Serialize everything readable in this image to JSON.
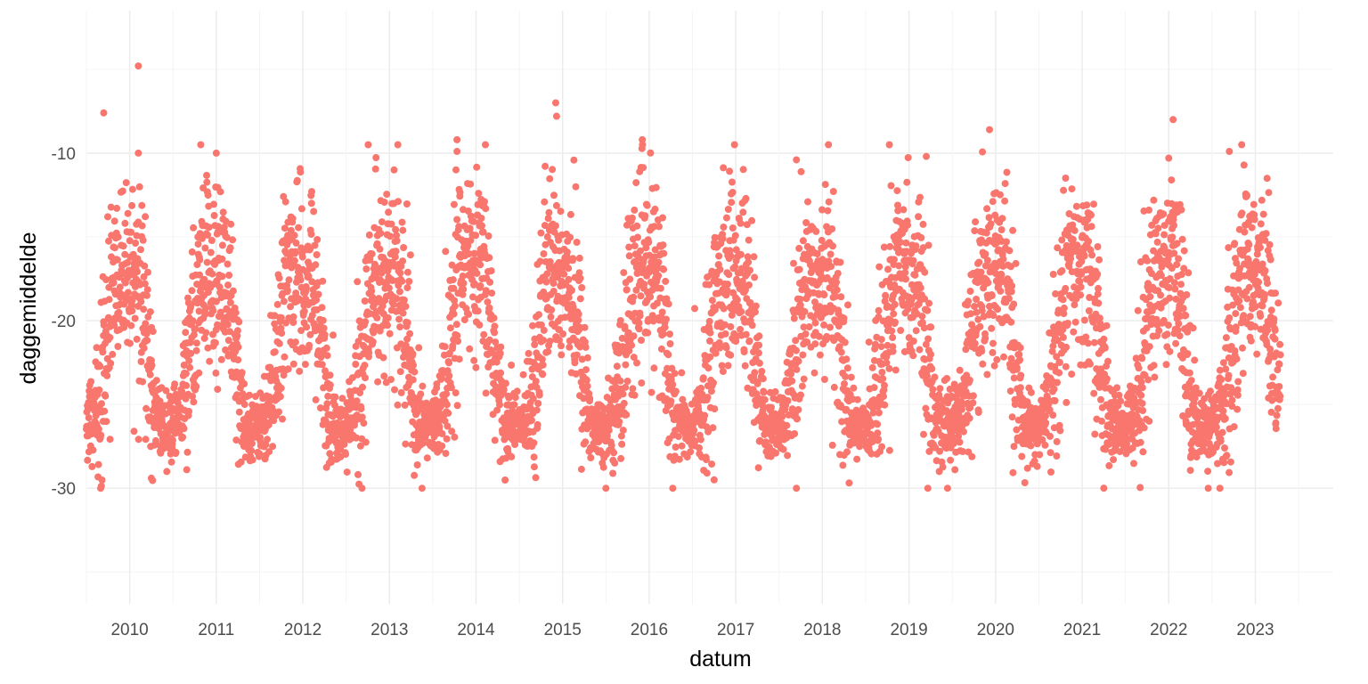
{
  "chart_data": {
    "type": "scatter",
    "title": "",
    "xlabel": "datum",
    "ylabel": "daggemiddelde",
    "x_ticks": [
      "2010",
      "2011",
      "2012",
      "2013",
      "2014",
      "2015",
      "2016",
      "2017",
      "2018",
      "2019",
      "2020",
      "2021",
      "2022",
      "2023"
    ],
    "y_ticks": [
      -10,
      -20,
      -30
    ],
    "y_tick_labels": [
      "-10",
      "-20",
      "-30"
    ],
    "xlim": [
      2009.5,
      2023.9
    ],
    "ylim": [
      -36.9,
      -1.5
    ],
    "grid": true,
    "legend": "none",
    "point_color": "#F8766D",
    "x_data_range": [
      "2009-07-01",
      "2023-04-15"
    ],
    "seasonal_profile": {
      "description": "daily mean values with a yearly cycle: warm-season level vs cold-season level",
      "x_month": [
        0,
        1,
        2,
        3,
        4,
        5,
        6,
        7,
        8,
        9,
        10,
        11
      ],
      "mean": [
        -17.5,
        -17.0,
        -20.0,
        -24.0,
        -26.2,
        -26.3,
        -26.4,
        -25.5,
        -23.5,
        -20.0,
        -17.5,
        -17.0
      ],
      "spread": [
        2.5,
        2.8,
        3.2,
        2.5,
        1.0,
        0.9,
        0.9,
        1.2,
        2.8,
        3.2,
        2.8,
        2.5
      ]
    },
    "notable_points": [
      {
        "x": 2010.1,
        "y": -4.8
      },
      {
        "x": 2009.7,
        "y": -7.6
      },
      {
        "x": 2014.92,
        "y": -7.0
      },
      {
        "x": 2014.93,
        "y": -7.8
      },
      {
        "x": 2019.93,
        "y": -8.6
      },
      {
        "x": 2022.05,
        "y": -8.0
      },
      {
        "x": 2015.92,
        "y": -9.2
      },
      {
        "x": 2013.78,
        "y": -9.2
      },
      {
        "x": 2022.7,
        "y": -9.9
      },
      {
        "x": 2010.1,
        "y": -10.0
      },
      {
        "x": 2011.0,
        "y": -10.0
      },
      {
        "x": 2013.78,
        "y": -9.9
      },
      {
        "x": 2019.2,
        "y": -10.2
      },
      {
        "x": 2017.7,
        "y": -10.4
      },
      {
        "x": 2022.0,
        "y": -10.3
      },
      {
        "x": 2010.25,
        "y": -29.4
      },
      {
        "x": 2016.75,
        "y": -29.5
      },
      {
        "x": 2021.25,
        "y": -30.0
      },
      {
        "x": 2019.35,
        "y": -29.0
      }
    ]
  }
}
